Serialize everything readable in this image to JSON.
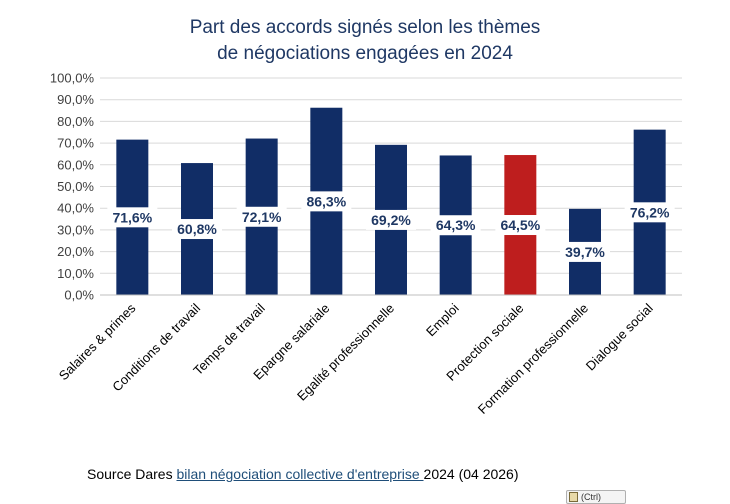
{
  "chart_data": {
    "type": "bar",
    "title_lines": [
      "Part des accords signés selon les thèmes",
      "de négociations engagées en 2024"
    ],
    "categories": [
      "Salaires & primes",
      "Conditions de travail",
      "Temps de travail",
      "Epargne salariale",
      "Egalité professionnelle",
      "Emploi",
      "Protection sociale",
      "Formation professionnelle",
      "Dialogue social"
    ],
    "values": [
      71.6,
      60.8,
      72.1,
      86.3,
      69.2,
      64.3,
      64.5,
      39.7,
      76.2
    ],
    "data_labels": [
      "71,6%",
      "60,8%",
      "72,1%",
      "86,3%",
      "69,2%",
      "64,3%",
      "64,5%",
      "39,7%",
      "76,2%"
    ],
    "y_ticks": [
      0,
      10,
      20,
      30,
      40,
      50,
      60,
      70,
      80,
      90,
      100
    ],
    "y_tick_labels": [
      "0,0%",
      "10,0%",
      "20,0%",
      "30,0%",
      "40,0%",
      "50,0%",
      "60,0%",
      "70,0%",
      "80,0%",
      "90,0%",
      "100,0%"
    ],
    "ylim": [
      0,
      100
    ],
    "grid": true,
    "highlight_index": 6,
    "colors": {
      "bar": "#112d66",
      "highlight": "#be1e1e",
      "grid": "#d9d9d9",
      "title": "#1f3864"
    }
  },
  "source": {
    "prefix": "Source Dares ",
    "link_text": "bilan négociation collective d'entreprise ",
    "suffix": "2024 (04 2026)"
  },
  "widget": {
    "label": "(Ctrl)"
  }
}
